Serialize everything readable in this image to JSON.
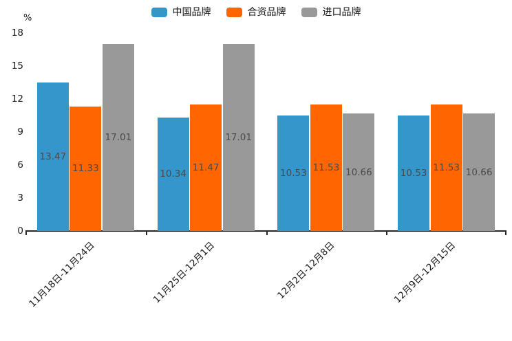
{
  "chart_data": {
    "type": "bar",
    "title": "",
    "unit_label": "%",
    "categories": [
      "11月18日-11月24日",
      "11月25日-12月1日",
      "12月2日-12月8日",
      "12月9日-12月15日"
    ],
    "series": [
      {
        "name": "中国品牌",
        "color": "#3496CB",
        "values": [
          13.47,
          10.34,
          10.53,
          10.53
        ]
      },
      {
        "name": "合资品牌",
        "color": "#FF6600",
        "values": [
          11.33,
          11.47,
          11.53,
          11.53
        ]
      },
      {
        "name": "进口品牌",
        "color": "#999999",
        "values": [
          17.01,
          17.01,
          10.66,
          10.66
        ]
      }
    ],
    "y_ticks": [
      0,
      3,
      6,
      9,
      12,
      15,
      18
    ],
    "ylim": [
      0,
      18
    ],
    "value_labels": true,
    "grid": false,
    "legend_position": "top-center",
    "xlabel": "",
    "ylabel": "%",
    "axis_color": "#262626",
    "value_label_color": "#4a4a4a"
  }
}
